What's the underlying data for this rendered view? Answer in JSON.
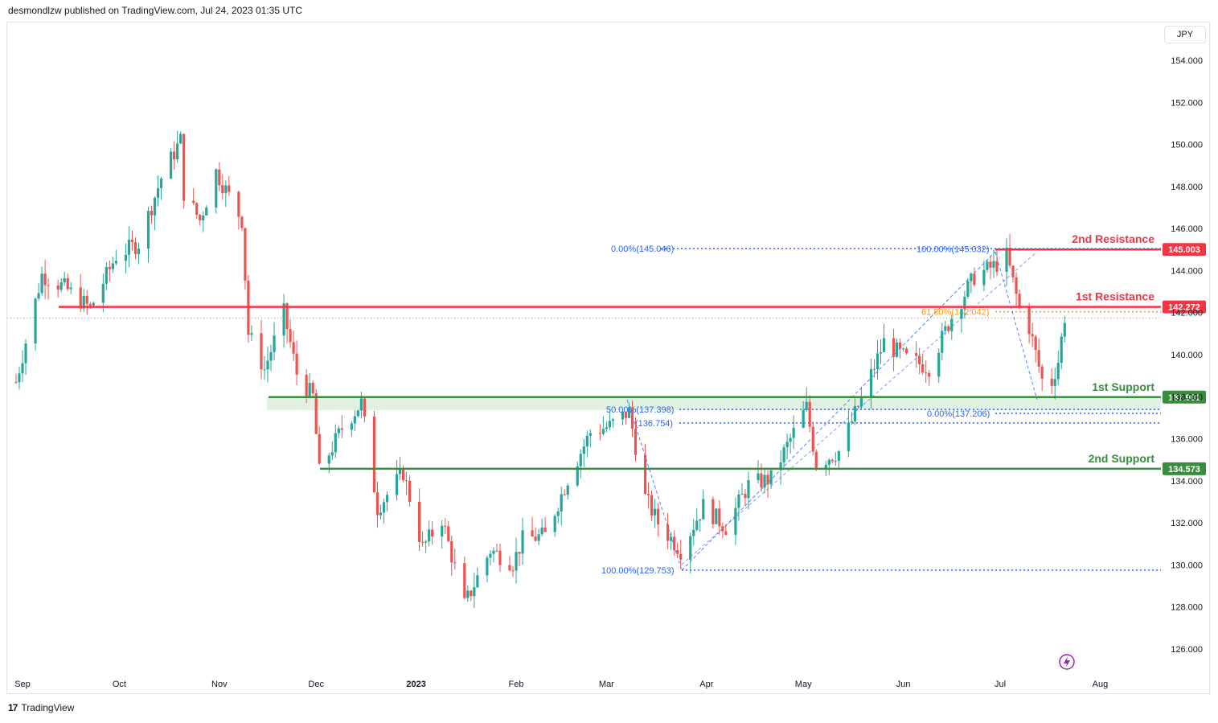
{
  "header": {
    "published": "desmondlzw published on TradingView.com, Jul 24, 2023 01:35 UTC"
  },
  "currency": "JPY",
  "footer": {
    "logo": "TradingView"
  },
  "colors": {
    "up": "#26a69a",
    "down": "#ef5350",
    "resistance": "#f23645",
    "support": "#388e3c",
    "fib": "#2962ff",
    "fib_orange": "#ff9800"
  },
  "chart_data": {
    "type": "candlestick",
    "title": "",
    "ylim": [
      124.5,
      155.6
    ],
    "yticks": [
      "154.000",
      "152.000",
      "150.000",
      "148.000",
      "146.000",
      "144.000",
      "142.000",
      "140.000",
      "138.000",
      "136.000",
      "134.000",
      "132.000",
      "130.000",
      "128.000",
      "126.000"
    ],
    "xticks": [
      {
        "label": "Sep",
        "date": "2022-09-01"
      },
      {
        "label": "Oct",
        "date": "2022-10-01"
      },
      {
        "label": "Nov",
        "date": "2022-11-01"
      },
      {
        "label": "Dec",
        "date": "2022-12-01"
      },
      {
        "label": "2023",
        "date": "2023-01-01"
      },
      {
        "label": "Feb",
        "date": "2023-02-01"
      },
      {
        "label": "Mar",
        "date": "2023-03-01"
      },
      {
        "label": "Apr",
        "date": "2023-04-01"
      },
      {
        "label": "May",
        "date": "2023-05-01"
      },
      {
        "label": "Jun",
        "date": "2023-06-01"
      },
      {
        "label": "Jul",
        "date": "2023-07-01"
      },
      {
        "label": "Aug",
        "date": "2023-08-01"
      }
    ],
    "price_path": [
      {
        "date": "2022-08-30",
        "close": 138.7
      },
      {
        "date": "2022-09-07",
        "close": 143.8
      },
      {
        "date": "2022-09-14",
        "close": 143.2
      },
      {
        "date": "2022-09-22",
        "close": 142.2
      },
      {
        "date": "2022-09-30",
        "close": 144.7
      },
      {
        "date": "2022-10-07",
        "close": 145.3
      },
      {
        "date": "2022-10-14",
        "close": 148.4
      },
      {
        "date": "2022-10-20",
        "close": 150.2
      },
      {
        "date": "2022-10-21",
        "close": 147.7
      },
      {
        "date": "2022-10-26",
        "close": 146.4
      },
      {
        "date": "2022-10-31",
        "close": 148.7
      },
      {
        "date": "2022-11-08",
        "close": 146.4
      },
      {
        "date": "2022-11-10",
        "close": 141.0
      },
      {
        "date": "2022-11-15",
        "close": 139.3
      },
      {
        "date": "2022-11-21",
        "close": 142.0
      },
      {
        "date": "2022-11-25",
        "close": 139.1
      },
      {
        "date": "2022-11-30",
        "close": 138.0
      },
      {
        "date": "2022-12-02",
        "close": 134.4
      },
      {
        "date": "2022-12-09",
        "close": 136.5
      },
      {
        "date": "2022-12-15",
        "close": 137.7
      },
      {
        "date": "2022-12-20",
        "close": 132.7
      },
      {
        "date": "2022-12-28",
        "close": 134.4
      },
      {
        "date": "2023-01-03",
        "close": 130.8
      },
      {
        "date": "2023-01-09",
        "close": 132.2
      },
      {
        "date": "2023-01-16",
        "close": 128.1
      },
      {
        "date": "2023-01-24",
        "close": 130.7
      },
      {
        "date": "2023-01-31",
        "close": 130.1
      },
      {
        "date": "2023-02-03",
        "close": 131.2
      },
      {
        "date": "2023-02-10",
        "close": 131.4
      },
      {
        "date": "2023-02-17",
        "close": 134.1
      },
      {
        "date": "2023-02-24",
        "close": 136.3
      },
      {
        "date": "2023-03-02",
        "close": 136.6
      },
      {
        "date": "2023-03-08",
        "close": 137.3
      },
      {
        "date": "2023-03-13",
        "close": 133.2
      },
      {
        "date": "2023-03-17",
        "close": 132.0
      },
      {
        "date": "2023-03-24",
        "close": 130.7
      },
      {
        "date": "2023-03-31",
        "close": 132.8
      },
      {
        "date": "2023-04-07",
        "close": 131.8
      },
      {
        "date": "2023-04-14",
        "close": 133.8
      },
      {
        "date": "2023-04-21",
        "close": 134.1
      },
      {
        "date": "2023-04-28",
        "close": 136.3
      },
      {
        "date": "2023-05-02",
        "close": 137.5
      },
      {
        "date": "2023-05-05",
        "close": 134.8
      },
      {
        "date": "2023-05-12",
        "close": 135.4
      },
      {
        "date": "2023-05-19",
        "close": 137.9
      },
      {
        "date": "2023-05-26",
        "close": 140.6
      },
      {
        "date": "2023-06-02",
        "close": 139.8
      },
      {
        "date": "2023-06-09",
        "close": 139.4
      },
      {
        "date": "2023-06-16",
        "close": 141.8
      },
      {
        "date": "2023-06-23",
        "close": 143.7
      },
      {
        "date": "2023-06-30",
        "close": 144.3
      },
      {
        "date": "2023-07-03",
        "close": 144.7
      },
      {
        "date": "2023-07-07",
        "close": 142.2
      },
      {
        "date": "2023-07-10",
        "close": 141.3
      },
      {
        "date": "2023-07-14",
        "close": 138.8
      },
      {
        "date": "2023-07-17",
        "close": 138.7
      },
      {
        "date": "2023-07-19",
        "close": 139.7
      },
      {
        "date": "2023-07-21",
        "close": 141.8
      }
    ],
    "levels": [
      {
        "name": "2nd Resistance",
        "price_label": "145.003",
        "price": 145.003,
        "kind": "resistance"
      },
      {
        "name": "1st Resistance",
        "price_label": "142.272",
        "price": 142.272,
        "kind": "resistance"
      },
      {
        "name": "1st Support",
        "price_label": "137.981",
        "price": 137.981,
        "kind": "support"
      },
      {
        "name": "2nd Support",
        "price_label": "134.573",
        "price": 134.573,
        "kind": "support"
      }
    ],
    "fib_labels": [
      {
        "text": "0.00%(145.046)",
        "price": 145.046,
        "color": "fib"
      },
      {
        "text": "100.00%(145.032)",
        "price": 145.032,
        "color": "fib"
      },
      {
        "text": "61.80%(142.042)",
        "price": 142.042,
        "color": "fib_orange"
      },
      {
        "text": "50.00%(137.398)",
        "price": 137.398,
        "color": "fib"
      },
      {
        "text": "(136.754)",
        "price": 136.754,
        "color": "fib"
      },
      {
        "text": "0.00%(137.206)",
        "price": 137.206,
        "color": "fib"
      },
      {
        "text": "100.00%(129.753)",
        "price": 129.753,
        "color": "fib"
      }
    ],
    "last_price": 141.75
  }
}
